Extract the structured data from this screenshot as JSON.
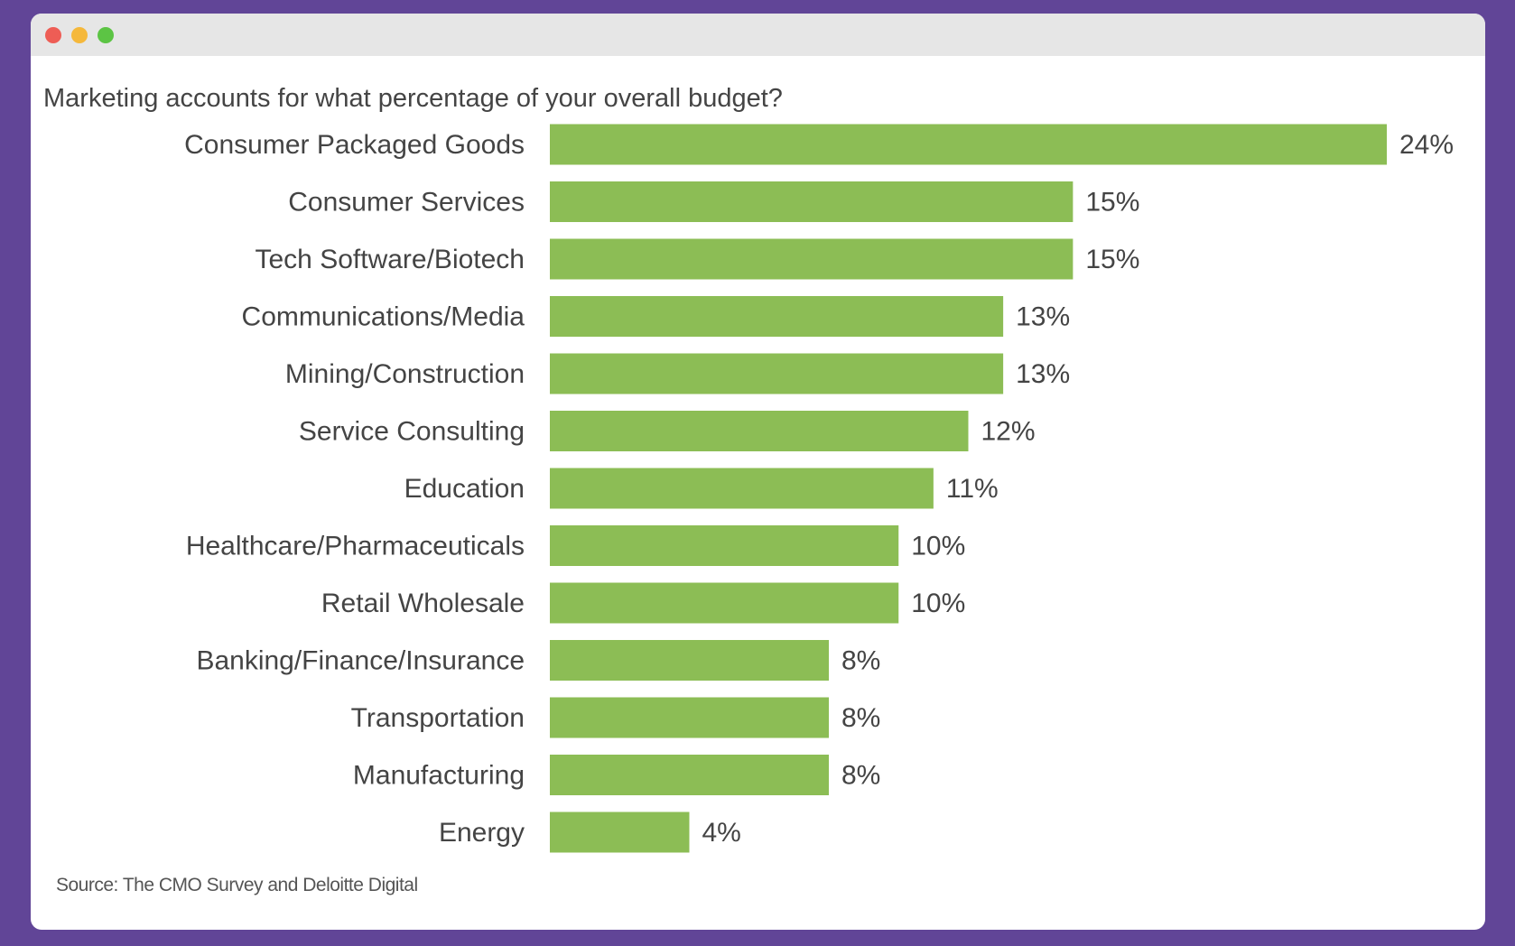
{
  "window": {
    "controls": [
      "close",
      "minimize",
      "maximize"
    ],
    "control_colors": [
      "#ee5d55",
      "#f5b83b",
      "#5cc444"
    ]
  },
  "chart_data": {
    "type": "bar",
    "orientation": "horizontal",
    "subtitle": "Marketing accounts for what percentage of your overall budget?",
    "categories": [
      "Consumer Packaged Goods",
      "Consumer Services",
      "Tech Software/Biotech",
      "Communications/Media",
      "Mining/Construction",
      "Service Consulting",
      "Education",
      "Healthcare/Pharmaceuticals",
      "Retail Wholesale",
      "Banking/Finance/Insurance",
      "Transportation",
      "Manufacturing",
      "Energy"
    ],
    "values": [
      24,
      15,
      15,
      13,
      13,
      12,
      11,
      10,
      10,
      8,
      8,
      8,
      4
    ],
    "value_labels": [
      "24%",
      "15%",
      "15%",
      "13%",
      "13%",
      "12%",
      "11%",
      "10%",
      "10%",
      "8%",
      "8%",
      "8%",
      "4%"
    ],
    "bar_color": "#8cbd55",
    "xlim": [
      0,
      24
    ],
    "grid": false,
    "source": "Source: The CMO Survey and Deloitte Digital"
  }
}
